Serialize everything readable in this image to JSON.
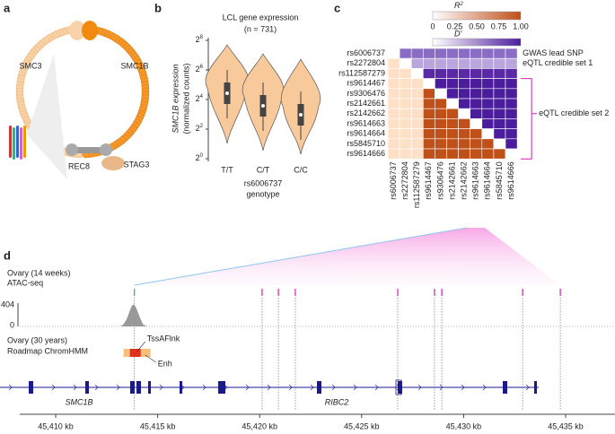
{
  "panel_a": {
    "letter": "a",
    "labels": {
      "smc3": "SMC3",
      "smc1b": "SMC1B",
      "rec8": "REC8",
      "stag3": "STAG3"
    }
  },
  "panel_b": {
    "letter": "b",
    "title": "LCL gene expression",
    "subtitle": "(n = 731)",
    "ylabel": [
      "SMC1B expression",
      "(normalized counts)"
    ],
    "yticks": [
      {
        "base": "2",
        "exp": "0"
      },
      {
        "base": "2",
        "exp": "2"
      },
      {
        "base": "2",
        "exp": "4"
      },
      {
        "base": "2",
        "exp": "6"
      },
      {
        "base": "2",
        "exp": "8"
      }
    ],
    "categories": [
      "T/T",
      "C/T",
      "C/C"
    ],
    "xlabel": [
      "rs6006737",
      "genotype"
    ]
  },
  "panel_c": {
    "letter": "c",
    "r2_label": "R",
    "r2_sup": "2",
    "d_label": "D′",
    "colorbar_ticks": [
      "0",
      "0.25",
      "0.50",
      "0.75",
      "1.00"
    ],
    "snps": [
      "rs6006737",
      "rs2272804",
      "rs112587279",
      "rs9614467",
      "rs9306476",
      "rs2142661",
      "rs2142662",
      "rs9614663",
      "rs9614664",
      "rs5845710",
      "rs9614666"
    ],
    "group_labels": [
      "GWAS lead SNP",
      "eQTL credible set 1",
      "eQTL credible set 2"
    ]
  },
  "panel_d": {
    "letter": "d",
    "atac_label": [
      "Ovary (14 weeks)",
      "ATAC-seq"
    ],
    "atac_scale": [
      "404",
      "0"
    ],
    "chromhmm_label": [
      "Ovary (30 years)",
      "Roadmap ChromHMM"
    ],
    "states": [
      "TssAFlnk",
      "Enh"
    ],
    "genes": [
      "SMC1B",
      "RIBC2"
    ],
    "xlim": [
      45408.24,
      45437.42
    ],
    "xticks": [
      {
        "value": 45410,
        "label": "45,410 kb"
      },
      {
        "value": 45415,
        "label": "45,415 kb"
      },
      {
        "value": 45420,
        "label": "45,420 kb"
      },
      {
        "value": 45425,
        "label": "45,425 kb"
      },
      {
        "value": 45430,
        "label": "45,430 kb"
      },
      {
        "value": 45435,
        "label": "45,435 kb"
      }
    ],
    "snp_positions": [
      {
        "kb": 45413.86,
        "color": "#3a8fd8"
      },
      {
        "kb": 45420.12,
        "color": "#d61fae"
      },
      {
        "kb": 45420.92,
        "color": "#d61fae"
      },
      {
        "kb": 45421.75,
        "color": "#d61fae"
      },
      {
        "kb": 45426.77,
        "color": "#d61fae"
      },
      {
        "kb": 45428.57,
        "color": "#d61fae"
      },
      {
        "kb": 45428.93,
        "color": "#d61fae"
      },
      {
        "kb": 45432.89,
        "color": "#d61fae"
      },
      {
        "kb": 45434.74,
        "color": "#d61fae"
      }
    ]
  }
}
